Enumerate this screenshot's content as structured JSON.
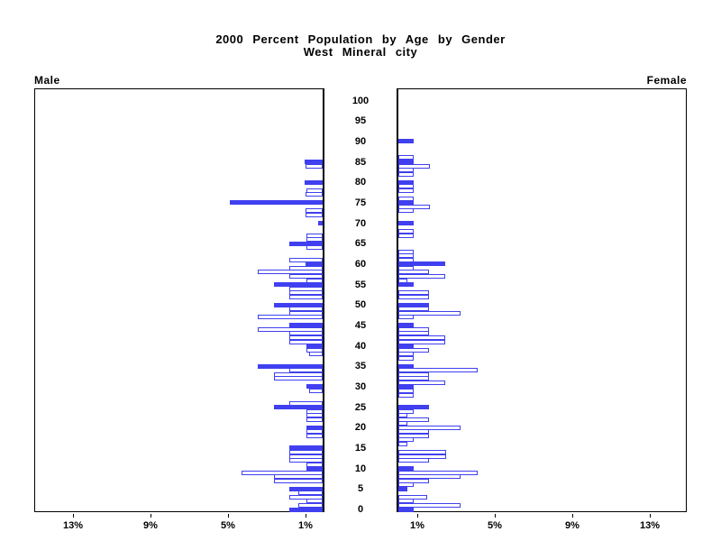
{
  "header": {
    "title_line1": "2000 Percent Population by Age by Gender",
    "title_line2": "West Mineral city"
  },
  "chart_data": {
    "type": "bar",
    "subtype": "population-pyramid",
    "title": "2000 Percent Population by Age by Gender",
    "subtitle": "West Mineral city",
    "left_panel_label": "Male",
    "right_panel_label": "Female",
    "age_axis": {
      "min": 0,
      "max": 100,
      "tick_step": 5,
      "tick_labels": [
        "0",
        "5",
        "10",
        "15",
        "20",
        "25",
        "30",
        "35",
        "40",
        "45",
        "50",
        "55",
        "60",
        "65",
        "70",
        "75",
        "80",
        "85",
        "90",
        "95",
        "100"
      ]
    },
    "pct_axis": {
      "max": 15,
      "ticks": [
        1,
        5,
        9,
        13
      ],
      "tick_labels": [
        "1%",
        "5%",
        "9%",
        "13%"
      ]
    },
    "bar_color": "#4040f0",
    "outline_fill": "#ffffff",
    "solid_rule": "ages that are multiples of 5 are solid-filled",
    "outline_exceptions": {
      "female": [
        20
      ],
      "male": []
    },
    "male_pct_by_age": [
      1.7,
      1.26,
      0.85,
      1.7,
      1.26,
      1.7,
      0,
      2.5,
      2.5,
      4.2,
      0.85,
      0.85,
      1.7,
      1.7,
      1.7,
      1.7,
      0,
      0,
      0.85,
      0.85,
      0.85,
      0,
      0.85,
      0.85,
      0.85,
      2.5,
      1.7,
      0,
      0,
      0.7,
      0.85,
      0,
      2.5,
      2.5,
      1.7,
      3.35,
      0,
      0,
      0.7,
      0.85,
      0.85,
      1.7,
      1.7,
      1.7,
      3.35,
      1.7,
      0,
      3.35,
      1.7,
      1.7,
      2.5,
      0,
      1.7,
      1.7,
      1.7,
      2.5,
      0.85,
      1.7,
      3.35,
      1.7,
      0.9,
      1.7,
      0,
      0,
      0.85,
      1.7,
      0.85,
      0.85,
      0,
      0,
      0.25,
      0,
      0.9,
      0.9,
      0,
      4.8,
      0,
      0.9,
      0.85,
      0,
      0.95,
      0,
      0,
      0,
      0.9,
      0.95,
      0,
      0,
      0,
      0,
      0
    ],
    "female_pct_by_age": [
      0.8,
      3.2,
      0.8,
      1.5,
      0,
      0.45,
      0.8,
      1.6,
      3.2,
      4.1,
      0.8,
      0,
      1.6,
      2.45,
      2.45,
      0,
      0.45,
      0.8,
      1.6,
      1.6,
      3.2,
      0.45,
      1.6,
      0.45,
      0.8,
      1.6,
      0,
      0,
      0.8,
      0.8,
      0.8,
      2.4,
      1.6,
      1.6,
      4.1,
      0.8,
      0,
      0.8,
      0.8,
      1.6,
      0.8,
      2.4,
      2.4,
      1.6,
      1.6,
      0.8,
      0,
      0.8,
      3.2,
      1.6,
      1.6,
      0,
      1.6,
      1.6,
      0,
      0.8,
      0.45,
      2.4,
      1.6,
      0.8,
      2.4,
      0.8,
      0.8,
      0.8,
      0,
      0,
      0,
      0.8,
      0.8,
      0,
      0.8,
      0,
      0,
      0.8,
      1.65,
      0.8,
      0.8,
      0,
      0.8,
      0.8,
      0.8,
      0,
      0.8,
      0.8,
      1.65,
      0.8,
      0.8,
      0,
      0,
      0,
      0.8
    ]
  }
}
